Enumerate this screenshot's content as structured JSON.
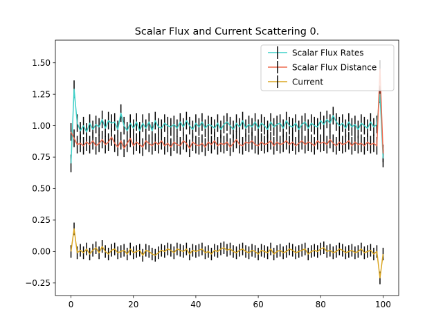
{
  "chart_data": {
    "type": "line",
    "title": "Scalar Flux and Current Scattering 0.",
    "xlabel": "",
    "ylabel": "",
    "xlim": [
      -5,
      105
    ],
    "ylim": [
      -0.35,
      1.68
    ],
    "xticks": [
      0,
      20,
      40,
      60,
      80,
      100
    ],
    "yticks": [
      -0.25,
      0.0,
      0.25,
      0.5,
      0.75,
      1.0,
      1.25,
      1.5
    ],
    "ytick_labels": [
      "−0.25",
      "0.00",
      "0.25",
      "0.50",
      "0.75",
      "1.00",
      "1.25",
      "1.50"
    ],
    "grid": false,
    "legend_position": "top-right",
    "error_bar_color": "#000000",
    "series": [
      {
        "name": "Scalar Flux Rates",
        "color": "#3fd0c8",
        "x": [
          0,
          1,
          2,
          3,
          4,
          5,
          6,
          7,
          8,
          9,
          10,
          11,
          12,
          13,
          14,
          15,
          16,
          17,
          18,
          19,
          20,
          21,
          22,
          23,
          24,
          25,
          26,
          27,
          28,
          29,
          30,
          31,
          32,
          33,
          34,
          35,
          36,
          37,
          38,
          39,
          40,
          41,
          42,
          43,
          44,
          45,
          46,
          47,
          48,
          49,
          50,
          51,
          52,
          53,
          54,
          55,
          56,
          57,
          58,
          59,
          60,
          61,
          62,
          63,
          64,
          65,
          66,
          67,
          68,
          69,
          70,
          71,
          72,
          73,
          74,
          75,
          76,
          77,
          78,
          79,
          80,
          81,
          82,
          83,
          84,
          85,
          86,
          87,
          88,
          89,
          90,
          91,
          92,
          93,
          94,
          95,
          96,
          97,
          98,
          99,
          100
        ],
        "values": [
          0.7,
          1.29,
          1.02,
          0.96,
          1.0,
          0.95,
          1.02,
          0.97,
          1.01,
          0.99,
          1.05,
          0.98,
          1.04,
          1.02,
          1.03,
          0.97,
          1.1,
          1.0,
          0.96,
          1.02,
          0.98,
          1.03,
          0.96,
          1.02,
          0.98,
          1.03,
          0.96,
          1.04,
          0.99,
          0.98,
          1.02,
          1.0,
          0.99,
          1.01,
          0.98,
          1.03,
          0.99,
          1.04,
          1.0,
          0.97,
          1.02,
          0.99,
          1.03,
          0.98,
          1.01,
          1.0,
          0.98,
          1.02,
          0.97,
          1.01,
          1.03,
          1.0,
          0.97,
          1.02,
          0.99,
          1.04,
          0.98,
          1.01,
          0.99,
          1.03,
          0.98,
          1.02,
          1.0,
          0.97,
          1.03,
          0.99,
          1.01,
          1.02,
          0.98,
          1.04,
          1.0,
          0.99,
          1.02,
          0.97,
          1.01,
          1.03,
          0.98,
          1.02,
          1.0,
          0.99,
          1.04,
          1.01,
          1.05,
          1.02,
          1.08,
          1.03,
          1.0,
          1.02,
          0.98,
          1.03,
          0.99,
          1.01,
          0.97,
          1.02,
          1.0,
          0.98,
          1.03,
          0.99,
          1.01,
          1.25,
          0.74
        ],
        "error": 0.07
      },
      {
        "name": "Scalar Flux Distance",
        "color": "#ee6a4e",
        "x": [
          0,
          1,
          2,
          3,
          4,
          5,
          6,
          7,
          8,
          9,
          10,
          11,
          12,
          13,
          14,
          15,
          16,
          17,
          18,
          19,
          20,
          21,
          22,
          23,
          24,
          25,
          26,
          27,
          28,
          29,
          30,
          31,
          32,
          33,
          34,
          35,
          36,
          37,
          38,
          39,
          40,
          41,
          42,
          43,
          44,
          45,
          46,
          47,
          48,
          49,
          50,
          51,
          52,
          53,
          54,
          55,
          56,
          57,
          58,
          59,
          60,
          61,
          62,
          63,
          64,
          65,
          66,
          67,
          68,
          69,
          70,
          71,
          72,
          73,
          74,
          75,
          76,
          77,
          78,
          79,
          80,
          81,
          82,
          83,
          84,
          85,
          86,
          87,
          88,
          89,
          90,
          91,
          92,
          93,
          94,
          95,
          96,
          97,
          98,
          99,
          100
        ],
        "values": [
          0.95,
          0.9,
          0.85,
          0.86,
          0.84,
          0.87,
          0.85,
          0.88,
          0.84,
          0.86,
          0.89,
          0.85,
          0.87,
          0.91,
          0.86,
          0.83,
          0.88,
          0.82,
          0.86,
          0.9,
          0.84,
          0.87,
          0.85,
          0.83,
          0.88,
          0.86,
          0.84,
          0.87,
          0.85,
          0.88,
          0.84,
          0.86,
          0.83,
          0.87,
          0.85,
          0.84,
          0.88,
          0.86,
          0.82,
          0.87,
          0.85,
          0.84,
          0.86,
          0.83,
          0.87,
          0.85,
          0.88,
          0.84,
          0.86,
          0.85,
          0.87,
          0.83,
          0.86,
          0.89,
          0.85,
          0.84,
          0.87,
          0.86,
          0.88,
          0.85,
          0.84,
          0.87,
          0.85,
          0.86,
          0.88,
          0.84,
          0.87,
          0.85,
          0.86,
          0.88,
          0.85,
          0.87,
          0.84,
          0.86,
          0.88,
          0.85,
          0.87,
          0.86,
          0.84,
          0.88,
          0.86,
          0.87,
          0.85,
          0.89,
          0.86,
          0.84,
          0.87,
          0.85,
          0.86,
          0.88,
          0.84,
          0.87,
          0.85,
          0.86,
          0.84,
          0.87,
          0.85,
          0.86,
          0.84,
          1.45,
          0.78
        ],
        "error": 0.07
      },
      {
        "name": "Current",
        "color": "#daa520",
        "x": [
          0,
          1,
          2,
          3,
          4,
          5,
          6,
          7,
          8,
          9,
          10,
          11,
          12,
          13,
          14,
          15,
          16,
          17,
          18,
          19,
          20,
          21,
          22,
          23,
          24,
          25,
          26,
          27,
          28,
          29,
          30,
          31,
          32,
          33,
          34,
          35,
          36,
          37,
          38,
          39,
          40,
          41,
          42,
          43,
          44,
          45,
          46,
          47,
          48,
          49,
          50,
          51,
          52,
          53,
          54,
          55,
          56,
          57,
          58,
          59,
          60,
          61,
          62,
          63,
          64,
          65,
          66,
          67,
          68,
          69,
          70,
          71,
          72,
          73,
          74,
          75,
          76,
          77,
          78,
          79,
          80,
          81,
          82,
          83,
          84,
          85,
          86,
          87,
          88,
          89,
          90,
          91,
          92,
          93,
          94,
          95,
          96,
          97,
          98,
          99,
          100
        ],
        "values": [
          0.0,
          0.18,
          -0.01,
          0.01,
          -0.01,
          0.02,
          -0.02,
          0.01,
          0.03,
          -0.01,
          0.04,
          0.0,
          -0.02,
          0.01,
          0.02,
          -0.01,
          0.0,
          0.01,
          -0.02,
          0.02,
          -0.01,
          0.0,
          0.01,
          -0.03,
          0.01,
          0.0,
          -0.02,
          -0.03,
          -0.01,
          0.01,
          0.0,
          0.02,
          0.01,
          -0.01,
          0.02,
          0.01,
          0.0,
          0.02,
          -0.02,
          0.01,
          0.0,
          0.01,
          0.02,
          -0.01,
          0.0,
          -0.02,
          0.01,
          0.0,
          0.02,
          0.03,
          0.01,
          0.02,
          0.0,
          -0.01,
          0.01,
          0.02,
          0.0,
          -0.01,
          0.01,
          0.0,
          -0.02,
          0.01,
          0.0,
          -0.01,
          0.02,
          -0.02,
          0.0,
          0.01,
          -0.01,
          0.0,
          0.02,
          0.01,
          -0.01,
          0.0,
          0.01,
          0.02,
          -0.02,
          0.0,
          0.01,
          0.0,
          0.02,
          0.03,
          0.0,
          0.01,
          -0.01,
          0.0,
          0.02,
          0.01,
          -0.01,
          0.0,
          0.01,
          -0.01,
          0.0,
          0.02,
          -0.01,
          0.0,
          0.01,
          -0.02,
          0.0,
          -0.21,
          -0.02
        ],
        "error": 0.05
      }
    ]
  }
}
